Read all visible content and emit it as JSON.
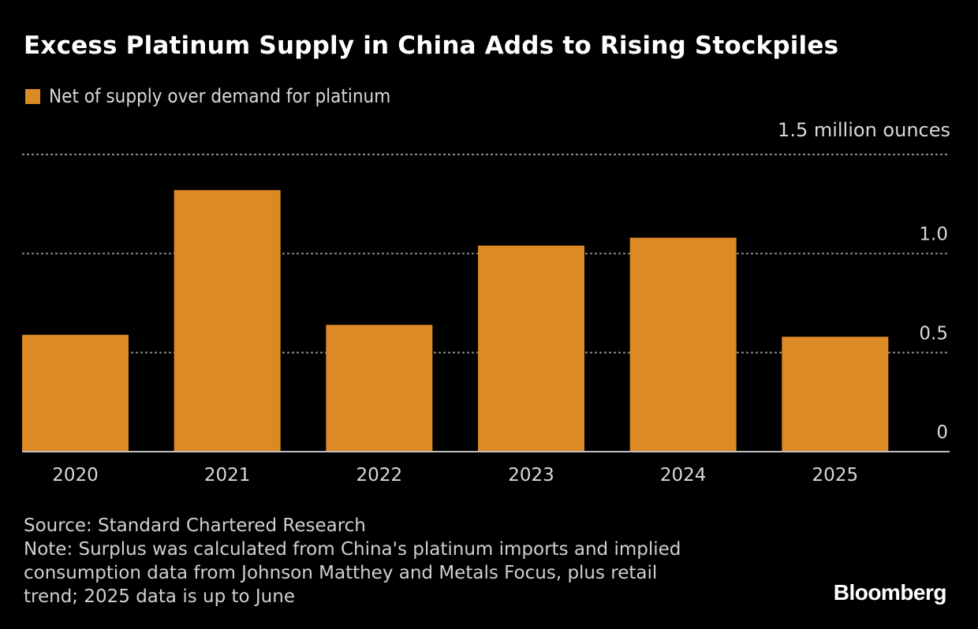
{
  "chart_data": {
    "type": "bar",
    "title": "Excess Platinum Supply in China Adds to Rising Stockpiles",
    "legend": [
      {
        "label": "Net of supply over demand for platinum",
        "color": "#DC8A26"
      }
    ],
    "legend_position": "top-left",
    "categories": [
      "2020",
      "2021",
      "2022",
      "2023",
      "2024",
      "2025"
    ],
    "series": [
      {
        "name": "Net of supply over demand for platinum",
        "values": [
          0.59,
          1.32,
          0.64,
          1.04,
          1.08,
          0.58
        ]
      }
    ],
    "unit_label": "1.5 million ounces",
    "xlabel": "",
    "ylabel": "million ounces",
    "ylim": [
      0,
      1.5
    ],
    "yticks": [
      0,
      0.5,
      1.0,
      1.5
    ],
    "ytick_labels": [
      "0",
      "0.5",
      "1.0",
      "1.5 million ounces"
    ],
    "grid": true,
    "yaxis_position": "right"
  },
  "colors": {
    "bar": "#DC8A26",
    "background": "#000000",
    "grid": "#8a8a8a",
    "axis": "#bfbfbf"
  },
  "footer": {
    "source": "Source: Standard Chartered Research",
    "note_lines": [
      "Note: Surplus was calculated from China's platinum imports and implied",
      "consumption data from Johnson Matthey and Metals Focus, plus retail",
      "trend; 2025 data is up to June"
    ]
  },
  "brand": {
    "logo_text": "Bloomberg"
  }
}
